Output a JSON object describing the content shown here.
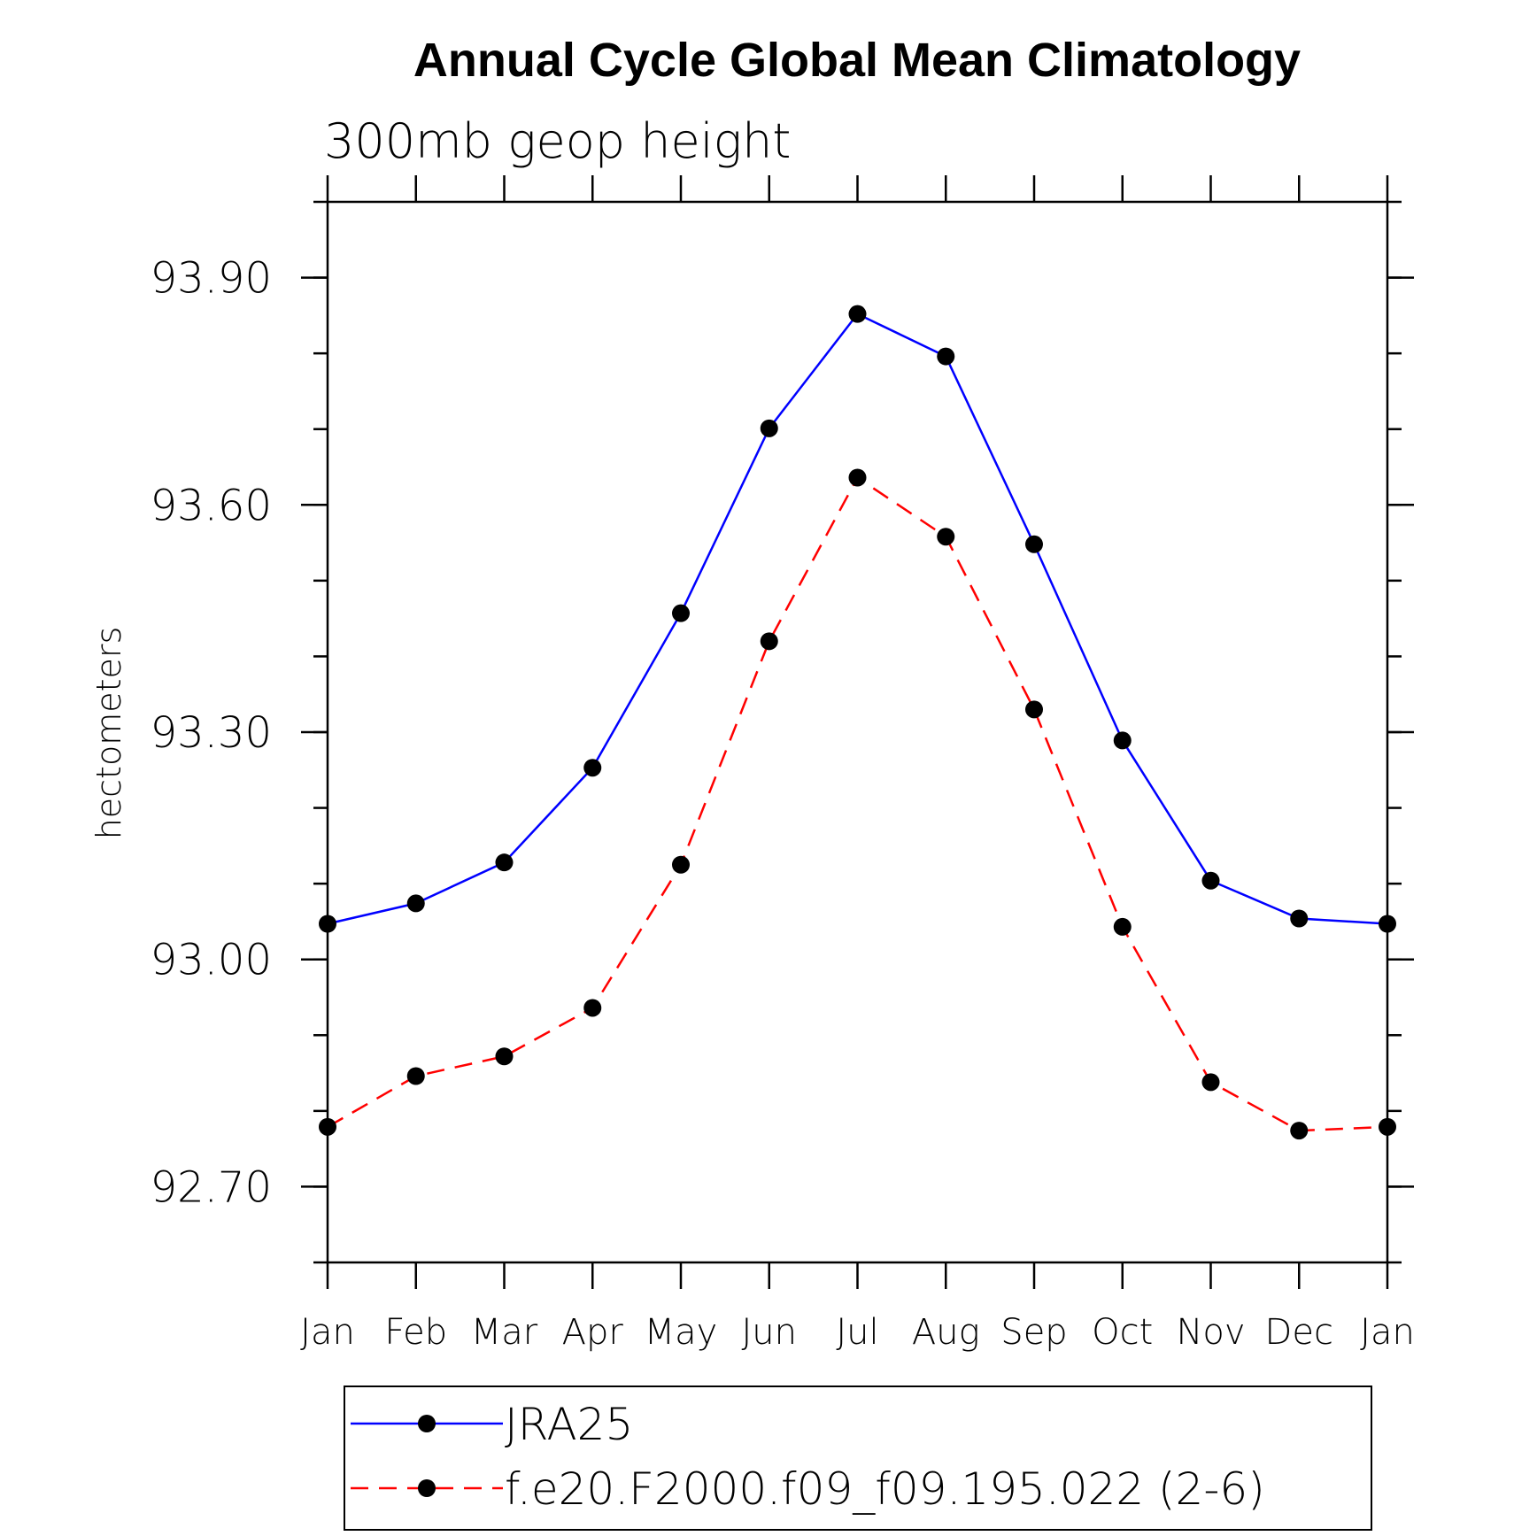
{
  "chart_data": {
    "type": "line",
    "title": "Annual Cycle Global Mean Climatology",
    "subtitle": "300mb geop height",
    "ylabel": "hectometers",
    "xlabel": "",
    "categories": [
      "Jan",
      "Feb",
      "Mar",
      "Apr",
      "May",
      "Jun",
      "Jul",
      "Aug",
      "Sep",
      "Oct",
      "Nov",
      "Dec",
      "Jan"
    ],
    "ylim": [
      92.6,
      94.0
    ],
    "yticks": [
      "93.90",
      "93.60",
      "93.30",
      "93.00",
      "92.70"
    ],
    "ytick_values": [
      93.9,
      93.6,
      93.3,
      93.0,
      92.7
    ],
    "ytick_minor_step": 0.1,
    "grid": false,
    "legend_position": "bottom",
    "series": [
      {
        "name": "JRA25",
        "color": "#0000ff",
        "dash": "solid",
        "marker": "filled-circle",
        "values": [
          93.047,
          93.074,
          93.128,
          93.253,
          93.457,
          93.701,
          93.852,
          93.796,
          93.548,
          93.289,
          93.104,
          93.054,
          93.047
        ]
      },
      {
        "name": "f.e20.F2000.f09_f09.195.022 (2-6)",
        "color": "#ff0000",
        "dash": "dashed",
        "marker": "filled-circle",
        "values": [
          92.779,
          92.846,
          92.872,
          92.936,
          93.125,
          93.42,
          93.636,
          93.558,
          93.33,
          93.043,
          92.838,
          92.774,
          92.779
        ]
      }
    ]
  }
}
